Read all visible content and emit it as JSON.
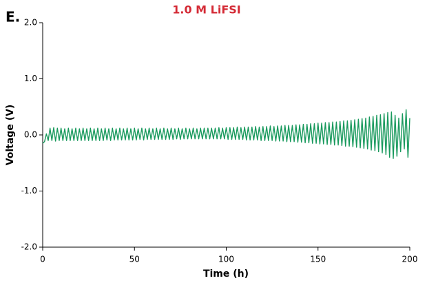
{
  "chart_data": {
    "type": "line",
    "panel_label": "E.",
    "title": "1.0 M LiFSI",
    "xlabel": "Time (h)",
    "ylabel": "Voltage (V)",
    "xlim": [
      0,
      200
    ],
    "xticks": [
      0,
      50,
      100,
      150,
      200
    ],
    "ylim": [
      -2,
      2
    ],
    "yticks": [
      {
        "value": 2,
        "label": "2.0"
      },
      {
        "value": 1,
        "label": "1.0"
      },
      {
        "value": 0,
        "label": "0.0"
      },
      {
        "value": -1,
        "label": "-1.0"
      },
      {
        "value": -2,
        "label": "-2.0"
      }
    ],
    "grid": false,
    "series": [
      {
        "color": "#1a9a5e",
        "x": [
          0,
          1,
          2,
          3,
          4,
          5,
          6,
          7,
          8,
          9,
          10,
          11,
          12,
          13,
          14,
          15,
          16,
          17,
          18,
          19,
          20,
          21,
          22,
          23,
          24,
          25,
          26,
          27,
          28,
          29,
          30,
          31,
          32,
          33,
          34,
          35,
          36,
          37,
          38,
          39,
          40,
          41,
          42,
          43,
          44,
          45,
          46,
          47,
          48,
          49,
          50,
          51,
          52,
          53,
          54,
          55,
          56,
          57,
          58,
          59,
          60,
          61,
          62,
          63,
          64,
          65,
          66,
          67,
          68,
          69,
          70,
          71,
          72,
          73,
          74,
          75,
          76,
          77,
          78,
          79,
          80,
          81,
          82,
          83,
          84,
          85,
          86,
          87,
          88,
          89,
          90,
          91,
          92,
          93,
          94,
          95,
          96,
          97,
          98,
          99,
          100,
          101,
          102,
          103,
          104,
          105,
          106,
          107,
          108,
          109,
          110,
          111,
          112,
          113,
          114,
          115,
          116,
          117,
          118,
          119,
          120,
          121,
          122,
          123,
          124,
          125,
          126,
          127,
          128,
          129,
          130,
          131,
          132,
          133,
          134,
          135,
          136,
          137,
          138,
          139,
          140,
          141,
          142,
          143,
          144,
          145,
          146,
          147,
          148,
          149,
          150,
          151,
          152,
          153,
          154,
          155,
          156,
          157,
          158,
          159,
          160,
          161,
          162,
          163,
          164,
          165,
          166,
          167,
          168,
          169,
          170,
          171,
          172,
          173,
          174,
          175,
          176,
          177,
          178,
          179,
          180,
          181,
          182,
          183,
          184,
          185,
          186,
          187,
          188,
          189,
          190,
          191,
          192,
          193,
          194,
          195,
          196,
          197,
          198,
          199,
          200
        ],
        "values": [
          -0.15,
          -0.12,
          0.02,
          -0.1,
          0.12,
          -0.1,
          0.13,
          -0.11,
          0.12,
          -0.1,
          0.12,
          -0.1,
          0.11,
          -0.1,
          0.12,
          -0.1,
          0.11,
          -0.1,
          0.12,
          -0.1,
          0.11,
          -0.1,
          0.12,
          -0.1,
          0.11,
          -0.1,
          0.12,
          -0.1,
          0.11,
          -0.1,
          0.12,
          -0.1,
          0.11,
          -0.1,
          0.12,
          -0.09,
          0.11,
          -0.1,
          0.12,
          -0.09,
          0.11,
          -0.09,
          0.12,
          -0.09,
          0.11,
          -0.09,
          0.12,
          -0.09,
          0.11,
          -0.09,
          0.12,
          -0.09,
          0.11,
          -0.08,
          0.12,
          -0.09,
          0.11,
          -0.08,
          0.12,
          -0.08,
          0.11,
          -0.08,
          0.12,
          -0.08,
          0.11,
          -0.08,
          0.12,
          -0.08,
          0.11,
          -0.08,
          0.12,
          -0.08,
          0.11,
          -0.07,
          0.12,
          -0.08,
          0.11,
          -0.07,
          0.12,
          -0.07,
          0.11,
          -0.07,
          0.12,
          -0.07,
          0.11,
          -0.07,
          0.12,
          -0.07,
          0.12,
          -0.07,
          0.12,
          -0.07,
          0.12,
          -0.07,
          0.12,
          -0.07,
          0.13,
          -0.07,
          0.12,
          -0.07,
          0.13,
          -0.08,
          0.13,
          -0.08,
          0.13,
          -0.08,
          0.14,
          -0.08,
          0.13,
          -0.08,
          0.14,
          -0.09,
          0.14,
          -0.09,
          0.14,
          -0.09,
          0.15,
          -0.09,
          0.14,
          -0.1,
          0.15,
          -0.1,
          0.15,
          -0.1,
          0.16,
          -0.1,
          0.15,
          -0.11,
          0.16,
          -0.11,
          0.16,
          -0.11,
          0.17,
          -0.12,
          0.17,
          -0.12,
          0.17,
          -0.12,
          0.18,
          -0.13,
          0.18,
          -0.13,
          0.19,
          -0.14,
          0.19,
          -0.14,
          0.2,
          -0.15,
          0.2,
          -0.15,
          0.21,
          -0.16,
          0.21,
          -0.16,
          0.22,
          -0.17,
          0.22,
          -0.17,
          0.23,
          -0.18,
          0.23,
          -0.18,
          0.24,
          -0.19,
          0.25,
          -0.2,
          0.25,
          -0.2,
          0.26,
          -0.21,
          0.27,
          -0.22,
          0.28,
          -0.23,
          0.29,
          -0.24,
          0.3,
          -0.25,
          0.32,
          -0.27,
          0.33,
          -0.28,
          0.35,
          -0.3,
          0.36,
          -0.32,
          0.38,
          -0.35,
          0.4,
          -0.4,
          0.41,
          -0.42,
          0.35,
          -0.38,
          0.3,
          -0.3,
          0.38,
          -0.25,
          0.45,
          -0.4,
          0.3
        ]
      }
    ]
  }
}
